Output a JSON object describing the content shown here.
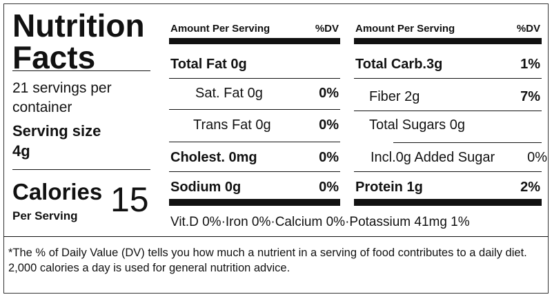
{
  "title": "Nutrition Facts",
  "servings": "21 servings per container",
  "serving_size": {
    "label": "Serving size",
    "value": "4g"
  },
  "calories": {
    "label": "Calories",
    "sublabel": "Per Serving",
    "value": 15
  },
  "columns": [
    {
      "header": {
        "amount": "Amount Per Serving",
        "dv": "%DV"
      },
      "rows": [
        {
          "name": "Total Fat 0g"
        },
        {
          "name": "Sat. Fat 0g",
          "dv": "0%"
        },
        {
          "name": "Trans Fat 0g",
          "dv": "0%"
        },
        {
          "name": "Cholest. 0mg",
          "dv": "0%"
        },
        {
          "name": "Sodium 0g",
          "dv": "0%"
        }
      ]
    },
    {
      "header": {
        "amount": "Amount Per Serving",
        "dv": "%DV"
      },
      "rows": [
        {
          "name": "Total Carb.3g",
          "dv": "1%"
        },
        {
          "name": "Fiber 2g",
          "dv": "7%"
        },
        {
          "name": "Total Sugars 0g"
        },
        {
          "name": "Incl.0g Added Sugar",
          "dv": "0%"
        },
        {
          "name": "Protein 1g",
          "dv": "2%"
        }
      ]
    }
  ],
  "vitamins": "Vit.D 0%·Iron 0%·Calcium 0%·Potassium 41mg 1%",
  "footnote": "*The % of Daily Value (DV) tells you how much a nutrient in a serving of food contributes to a daily diet. 2,000 calories a day is used for general nutrition advice."
}
